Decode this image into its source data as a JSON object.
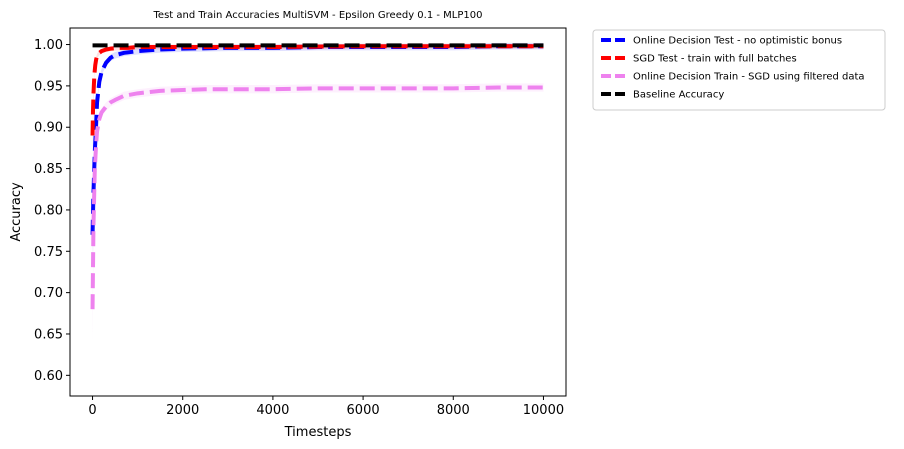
{
  "chart_data": {
    "type": "line",
    "title": "Test and Train Accuracies MultiSVM - Epsilon Greedy 0.1 - MLP100",
    "xlabel": "Timesteps",
    "ylabel": "Accuracy",
    "xlim": [
      -500,
      10500
    ],
    "ylim": [
      0.575,
      1.02
    ],
    "xticks": [
      0,
      2000,
      4000,
      6000,
      8000,
      10000
    ],
    "xtick_labels": [
      "0",
      "2000",
      "4000",
      "6000",
      "8000",
      "10000"
    ],
    "yticks": [
      0.6,
      0.65,
      0.7,
      0.75,
      0.8,
      0.85,
      0.9,
      0.95,
      1.0
    ],
    "ytick_labels": [
      "0.60",
      "0.65",
      "0.70",
      "0.75",
      "0.80",
      "0.85",
      "0.90",
      "0.95",
      "1.00"
    ],
    "grid": false,
    "legend_position": "outside-top-right",
    "series": [
      {
        "name": "Online Decision Test - no optimistic bonus",
        "color": "#0000ff",
        "style": "dashed",
        "x": [
          0,
          20,
          50,
          80,
          100,
          150,
          200,
          300,
          400,
          500,
          700,
          1000,
          1500,
          2000,
          3000,
          4000,
          5000,
          6000,
          7000,
          8000,
          9000,
          10000
        ],
        "y": [
          0.77,
          0.82,
          0.87,
          0.905,
          0.93,
          0.955,
          0.967,
          0.978,
          0.984,
          0.987,
          0.99,
          0.992,
          0.994,
          0.995,
          0.996,
          0.996,
          0.997,
          0.997,
          0.997,
          0.997,
          0.998,
          0.998
        ],
        "band": 0.004
      },
      {
        "name": "SGD Test - train with full batches",
        "color": "#ff0000",
        "style": "dashed",
        "x": [
          0,
          10,
          20,
          40,
          60,
          80,
          100,
          150,
          200,
          300,
          400,
          600,
          800,
          1000,
          2000,
          4000,
          6000,
          8000,
          10000
        ],
        "y": [
          0.89,
          0.92,
          0.94,
          0.963,
          0.975,
          0.982,
          0.986,
          0.99,
          0.992,
          0.994,
          0.995,
          0.996,
          0.996,
          0.997,
          0.997,
          0.997,
          0.998,
          0.998,
          0.998
        ],
        "band": 0.003
      },
      {
        "name": "Online Decision Train - SGD using filtered data",
        "color": "#ee82ee",
        "style": "dashed",
        "x": [
          0,
          20,
          50,
          80,
          100,
          150,
          200,
          300,
          400,
          500,
          700,
          1000,
          1500,
          2000,
          2500,
          3000,
          4000,
          5000,
          6000,
          7000,
          8000,
          9000,
          10000
        ],
        "y": [
          0.68,
          0.78,
          0.85,
          0.88,
          0.895,
          0.91,
          0.918,
          0.925,
          0.93,
          0.933,
          0.938,
          0.941,
          0.944,
          0.945,
          0.946,
          0.946,
          0.946,
          0.947,
          0.947,
          0.947,
          0.947,
          0.948,
          0.948
        ],
        "band": 0.005
      },
      {
        "name": "Baseline Accuracy",
        "color": "#000000",
        "style": "dashed",
        "x": [
          0,
          10000
        ],
        "y": [
          0.999,
          0.999
        ],
        "band": 0
      }
    ]
  }
}
